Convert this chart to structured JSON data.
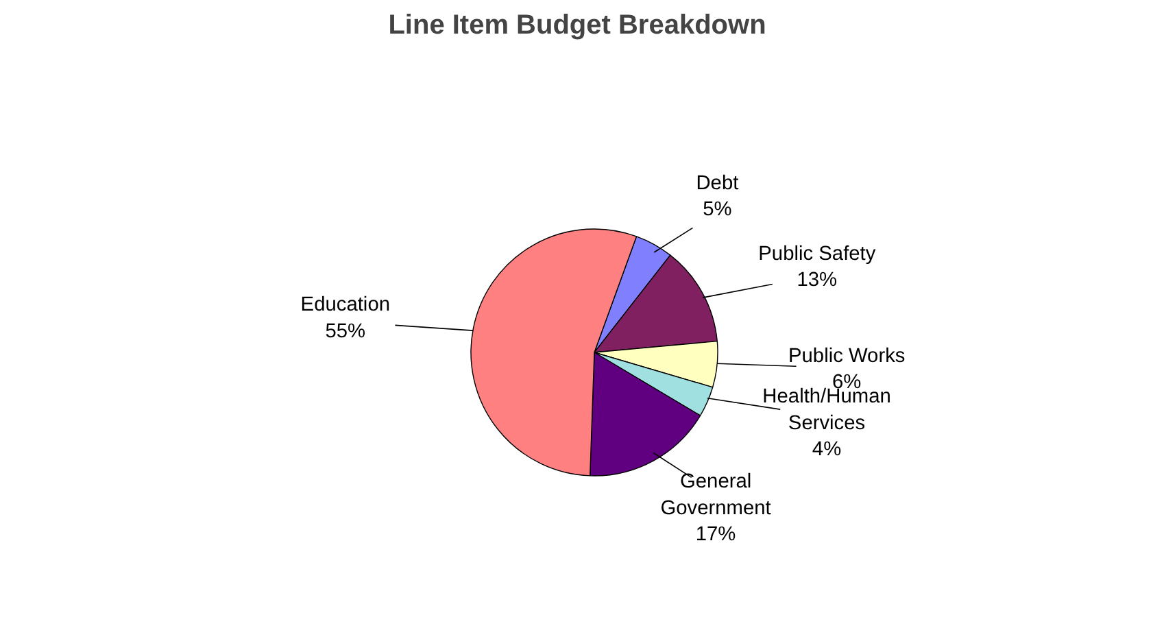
{
  "chart_data": {
    "type": "pie",
    "title": "Line Item Budget Breakdown",
    "categories": [
      "Debt",
      "Public Safety",
      "Public Works",
      "Health/Human Services",
      "General Government",
      "Education"
    ],
    "values": [
      5,
      13,
      6,
      4,
      17,
      55
    ],
    "value_labels": [
      "5%",
      "13%",
      "6%",
      "4%",
      "17%",
      "55%"
    ],
    "colors": [
      "#8080ff",
      "#802060",
      "#ffffc0",
      "#a0e0e0",
      "#600080",
      "#ff8080"
    ]
  }
}
